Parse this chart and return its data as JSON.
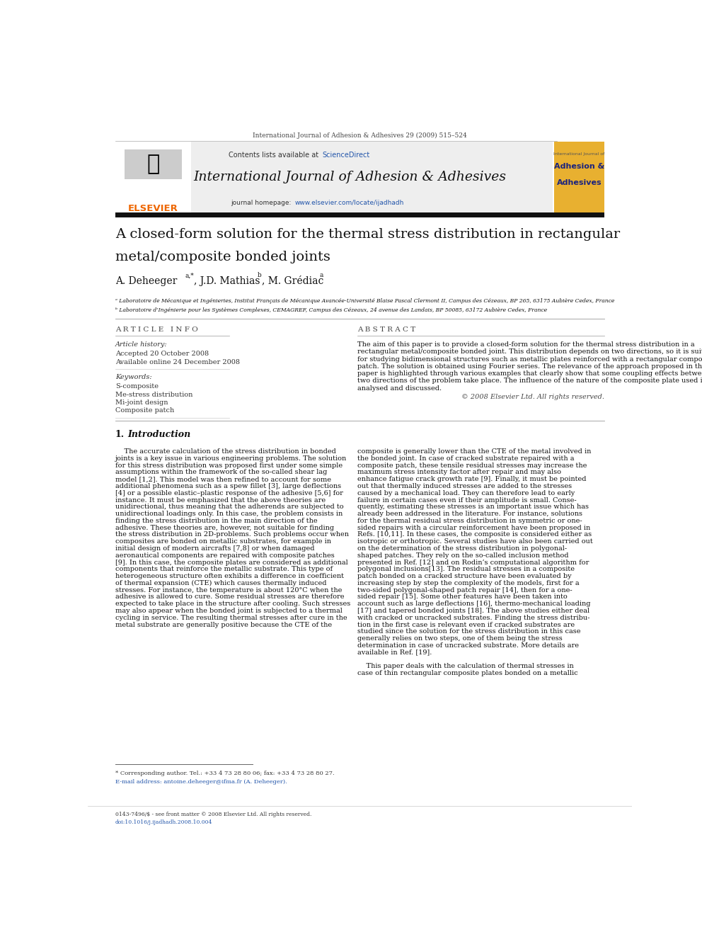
{
  "page_width": 9.92,
  "page_height": 13.23,
  "bg": "#ffffff",
  "journal_ref": "International Journal of Adhesion & Adhesives 29 (2009) 515–524",
  "header_bg": "#eeeeee",
  "header_title": "International Journal of Adhesion & Adhesives",
  "contents_text": "Contents lists available at ",
  "sciencedirect": "ScienceDirect",
  "sciencedirect_color": "#2255aa",
  "homepage_prefix": "journal homepage: ",
  "homepage_url": "www.elsevier.com/locate/ijadhadh",
  "link_color": "#2255aa",
  "elsevier_color": "#ee6600",
  "top_bar_color": "#111111",
  "cover_bg": "#e8b030",
  "cover_text1": "Adhesion &",
  "cover_text2": "Adhesives",
  "cover_text_color": "#1a237e",
  "cover_subtitle": "International Journal of",
  "article_title_line1": "A closed-form solution for the thermal stress distribution in rectangular",
  "article_title_line2": "metal/composite bonded joints",
  "author_line": "A. Deheeger",
  "author_sup1": "a,*",
  "author_mid": ", J.D. Mathias",
  "author_sup2": "b",
  "author_end": ", M. Grédiac",
  "author_sup3": "a",
  "affil_a": "ᵃ Laboratoire de Mécanique et Ingénieries, Institut Français de Mécanique Avancée-Université Blaise Pascal Clermont II, Campus des Cézeaux, BP 265, 63175 Aubière Cedex, France",
  "affil_b": "ᵇ Laboratoire d’Ingénierie pour les Systèmes Complexes, CEMAGREF, Campus des Cézeaux, 24 avenue des Landais, BP 50085, 63172 Aubière Cedex, France",
  "art_info_hdr": "A R T I C L E   I N F O",
  "abstract_hdr": "A B S T R A C T",
  "art_history": "Article history:",
  "accepted": "Accepted 20 October 2008",
  "available": "Available online 24 December 2008",
  "keywords_hdr": "Keywords:",
  "kw1": "S-composite",
  "kw2": "Me-stress distribution",
  "kw3": "Mi-joint design",
  "kw4": "Composite patch",
  "abstract_lines": [
    "The aim of this paper is to provide a closed-form solution for the thermal stress distribution in a",
    "rectangular metal/composite bonded joint. This distribution depends on two directions, so it is suitable",
    "for studying bidimensional structures such as metallic plates reinforced with a rectangular composite",
    "patch. The solution is obtained using Fourier series. The relevance of the approach proposed in this",
    "paper is highlighted through various examples that clearly show that some coupling effects between the",
    "two directions of the problem take place. The influence of the nature of the composite plate used is",
    "analysed and discussed."
  ],
  "copyright": "© 2008 Elsevier Ltd. All rights reserved.",
  "s1_num": "1.",
  "s1_title": "Introduction",
  "intro_left": [
    "    The accurate calculation of the stress distribution in bonded",
    "joints is a key issue in various engineering problems. The solution",
    "for this stress distribution was proposed first under some simple",
    "assumptions within the framework of the so-called shear lag",
    "model [1,2]. This model was then refined to account for some",
    "additional phenomena such as a spew fillet [3], large deflections",
    "[4] or a possible elastic–plastic response of the adhesive [5,6] for",
    "instance. It must be emphasized that the above theories are",
    "unidirectional, thus meaning that the adherends are subjected to",
    "unidirectional loadings only. In this case, the problem consists in",
    "finding the stress distribution in the main direction of the",
    "adhesive. These theories are, however, not suitable for finding",
    "the stress distribution in 2D-problems. Such problems occur when",
    "composites are bonded on metallic substrates, for example in",
    "initial design of modern aircrafts [7,8] or when damaged",
    "aeronautical components are repaired with composite patches",
    "[9]. In this case, the composite plates are considered as additional",
    "components that reinforce the metallic substrate. This type of",
    "heterogeneous structure often exhibits a difference in coefficient",
    "of thermal expansion (CTE) which causes thermally induced",
    "stresses. For instance, the temperature is about 120°C when the",
    "adhesive is allowed to cure. Some residual stresses are therefore",
    "expected to take place in the structure after cooling. Such stresses",
    "may also appear when the bonded joint is subjected to a thermal",
    "cycling in service. The resulting thermal stresses after cure in the",
    "metal substrate are generally positive because the CTE of the"
  ],
  "intro_right": [
    "composite is generally lower than the CTE of the metal involved in",
    "the bonded joint. In case of cracked substrate repaired with a",
    "composite patch, these tensile residual stresses may increase the",
    "maximum stress intensity factor after repair and may also",
    "enhance fatigue crack growth rate [9]. Finally, it must be pointed",
    "out that thermally induced stresses are added to the stresses",
    "caused by a mechanical load. They can therefore lead to early",
    "failure in certain cases even if their amplitude is small. Conse-",
    "quently, estimating these stresses is an important issue which has",
    "already been addressed in the literature. For instance, solutions",
    "for the thermal residual stress distribution in symmetric or one-",
    "sided repairs with a circular reinforcement have been proposed in",
    "Refs. [10,11]. In these cases, the composite is considered either as",
    "isotropic or orthotropic. Several studies have also been carried out",
    "on the determination of the stress distribution in polygonal-",
    "shaped patches. They rely on the so-called inclusion method",
    "presented in Ref. [12] and on Rodin’s computational algorithm for",
    "polygonal inclusions[13]. The residual stresses in a composite",
    "patch bonded on a cracked structure have been evaluated by",
    "increasing step by step the complexity of the models, first for a",
    "two-sided polygonal-shaped patch repair [14], then for a one-",
    "sided repair [15]. Some other features have been taken into",
    "account such as large deflections [16], thermo-mechanical loading",
    "[17] and tapered bonded joints [18]. The above studies either deal",
    "with cracked or uncracked substrates. Finding the stress distribu-",
    "tion in the first case is relevant even if cracked substrates are",
    "studied since the solution for the stress distribution in this case",
    "generally relies on two steps, one of them being the stress",
    "determination in case of uncracked substrate. More details are",
    "available in Ref. [19].",
    "",
    "    This paper deals with the calculation of thermal stresses in",
    "case of thin rectangular composite plates bonded on a metallic"
  ],
  "footnote1": "* Corresponding author. Tel.: +33 4 73 28 80 06; fax: +33 4 73 28 80 27.",
  "footnote2": "E-mail address: antoine.deheeger@ifma.fr (A. Deheeger).",
  "footer1": "0143-7496/$ - see front matter © 2008 Elsevier Ltd. All rights reserved.",
  "footer2": "doi:10.1016/j.ijadhadh.2008.10.004"
}
